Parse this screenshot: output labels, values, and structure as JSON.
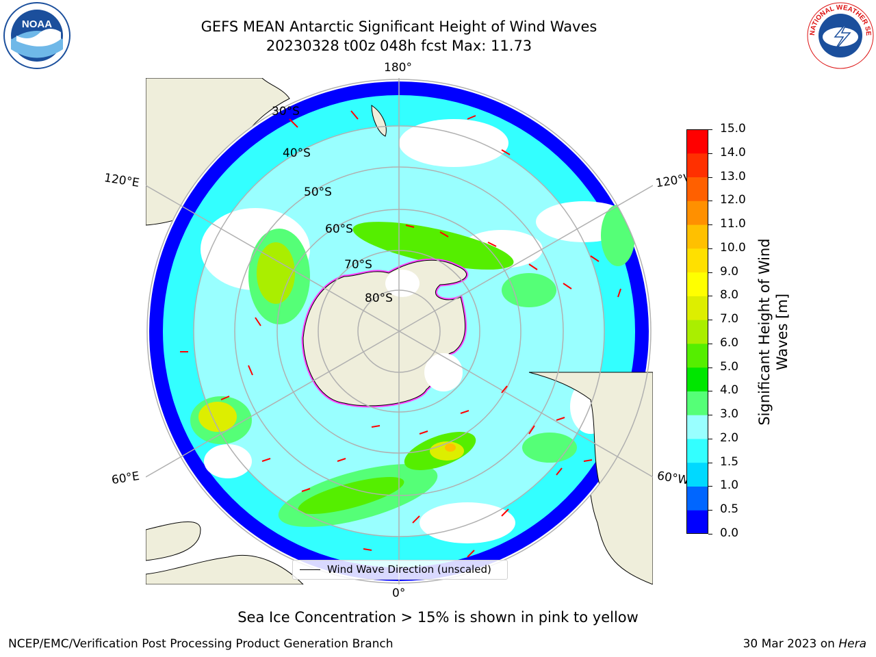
{
  "title": {
    "line1": "GEFS MEAN Antarctic Significant Height of Wind Waves",
    "line2": "20230328 t00z 048h fcst   Max: 11.73"
  },
  "logos": {
    "noaa": {
      "icon": "noaa-logo",
      "text": "NOAA"
    },
    "nws": {
      "icon": "nws-logo",
      "text": "NATIONAL WEATHER SERVICE"
    }
  },
  "map": {
    "projection": "south-polar-stereographic",
    "longitude_labels": {
      "top": "180°",
      "bottom": "0°",
      "left_upper": "120°E",
      "left_lower": "60°E",
      "right_upper": "120°W",
      "right_lower": "60°W"
    },
    "latitude_labels": [
      "30°S",
      "40°S",
      "50°S",
      "60°S",
      "70°S",
      "80°S"
    ],
    "legend": {
      "label": "Wind Wave Direction (unscaled)"
    },
    "colors": {
      "land": "#efeedb",
      "ocean_zero": "#ffffff",
      "grid": "#b0b0b0",
      "arrow": "#ff0000",
      "ice_pink": "#ff40ff",
      "ice_yellow": "#ffd000"
    }
  },
  "colorbar": {
    "label": "Significant Height of Wind Waves [m]",
    "label_line1": "Significant Height of Wind",
    "label_line2": "Waves [m]",
    "ticks": [
      "0.0",
      "0.5",
      "1.0",
      "1.5",
      "2.0",
      "3.0",
      "4.0",
      "5.0",
      "6.0",
      "7.0",
      "8.0",
      "9.0",
      "10.0",
      "11.0",
      "12.0",
      "13.0",
      "14.0",
      "15.0"
    ],
    "colors": [
      "#0000ff",
      "#0066ff",
      "#00d9ff",
      "#33ffff",
      "#99ffff",
      "#55ff77",
      "#00e600",
      "#55ee00",
      "#aaee00",
      "#ddee00",
      "#ffff00",
      "#ffe000",
      "#ffc000",
      "#ff9000",
      "#ff6000",
      "#ff3000",
      "#ff0000"
    ]
  },
  "footer": {
    "note": "Sea Ice Concentration > 15% is shown in pink to yellow",
    "left": "NCEP/EMC/Verification Post Processing Product Generation Branch",
    "right_prefix": "30 Mar 2023 on ",
    "right_host": "Hera"
  }
}
